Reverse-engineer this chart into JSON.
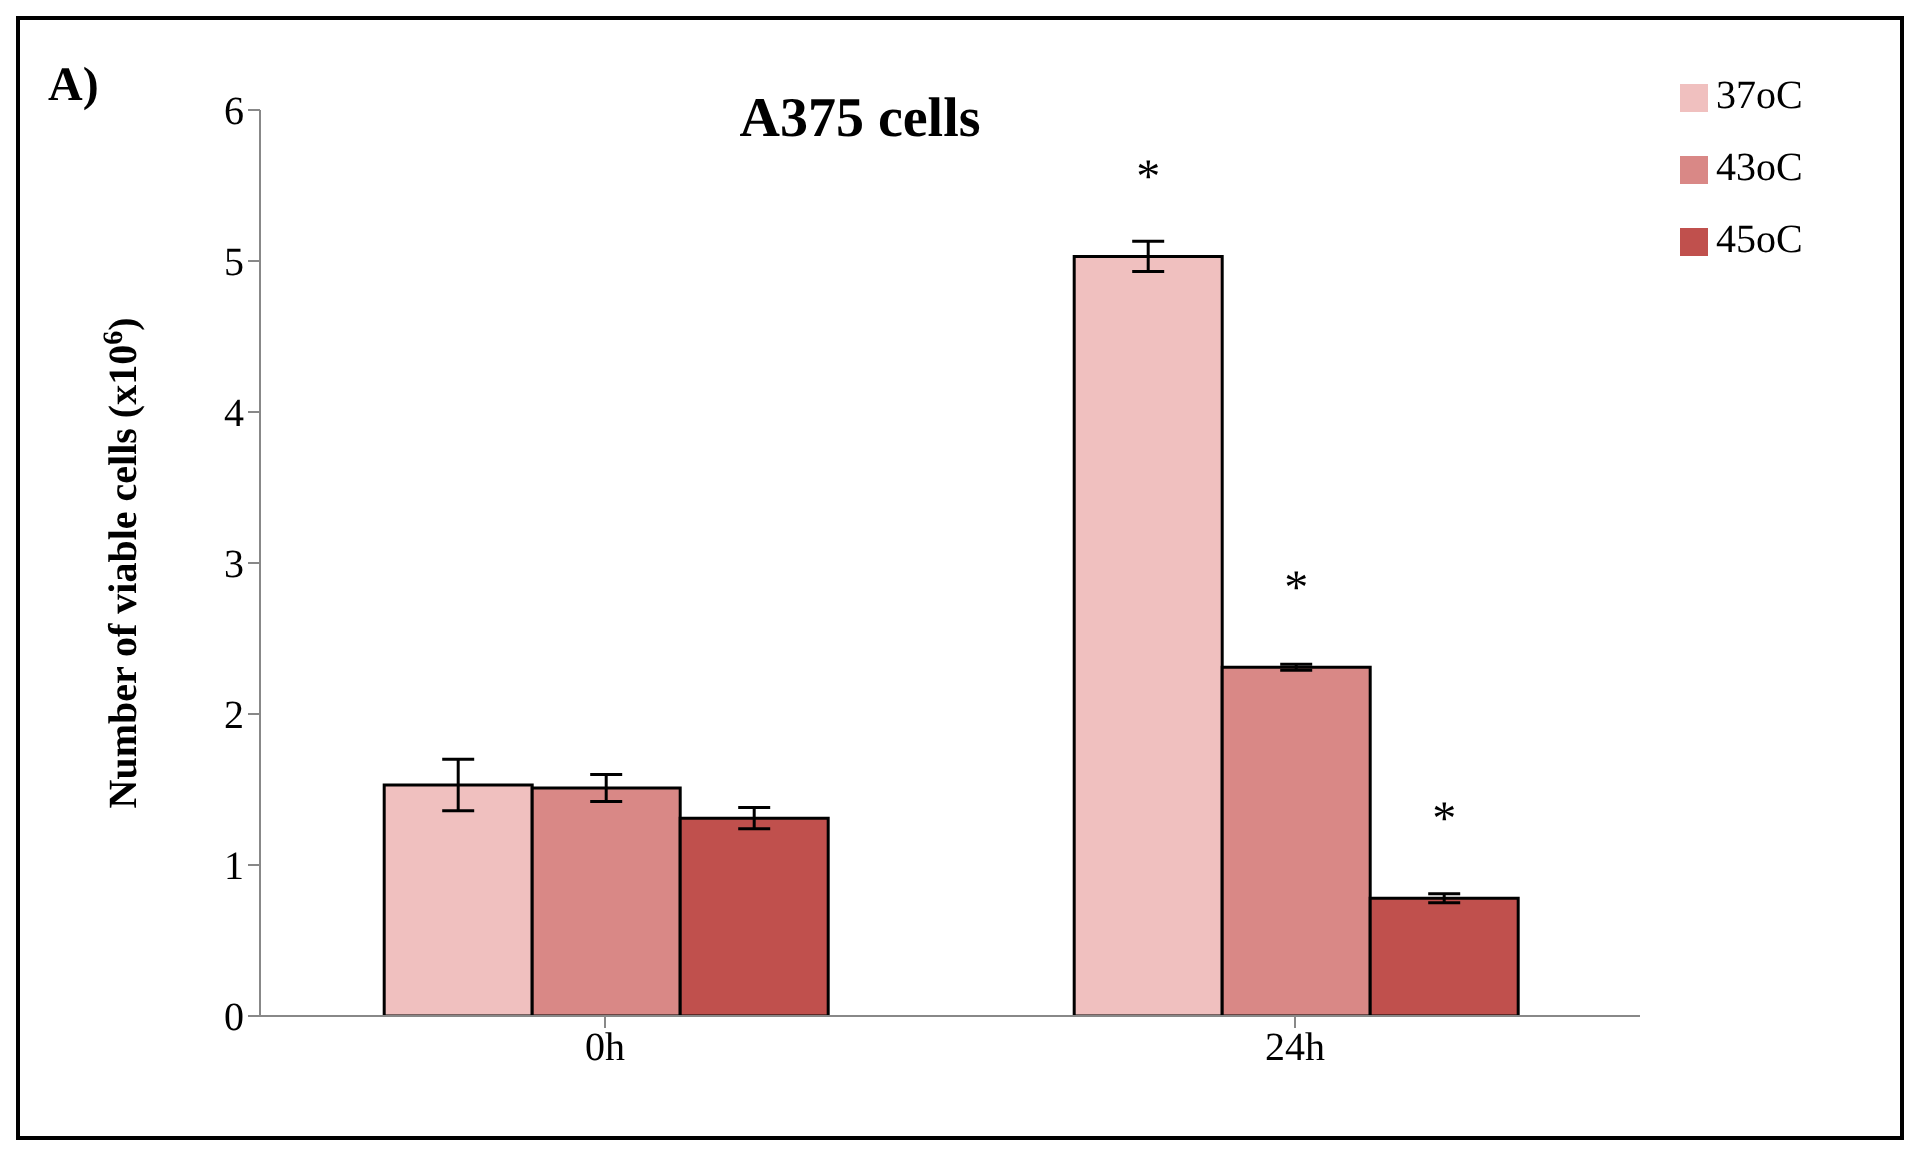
{
  "chart_data": {
    "type": "bar",
    "title": "A375 cells",
    "ylabel": "Number of viable cells (x10$^{6}$)",
    "annotations": [
      "A)"
    ],
    "categories": [
      "0h",
      "24h"
    ],
    "series": [
      {
        "name": "37oC",
        "color": "#f0c0bf",
        "values": [
          1.53,
          5.03
        ],
        "errors": [
          0.17,
          0.1
        ],
        "value_labels": [
          null,
          "*"
        ]
      },
      {
        "name": "43oC",
        "color": "#d98886",
        "values": [
          1.51,
          2.31
        ],
        "errors": [
          0.09,
          0.02
        ],
        "value_labels": [
          null,
          "*"
        ]
      },
      {
        "name": "45oC",
        "color": "#c0504d",
        "values": [
          1.31,
          0.78
        ],
        "errors": [
          0.07,
          0.03
        ],
        "value_labels": [
          null,
          "*"
        ]
      }
    ],
    "ylim": [
      0,
      6
    ],
    "yticks": [
      0,
      1,
      2,
      3,
      4,
      5,
      6
    ],
    "legend": "top right"
  }
}
